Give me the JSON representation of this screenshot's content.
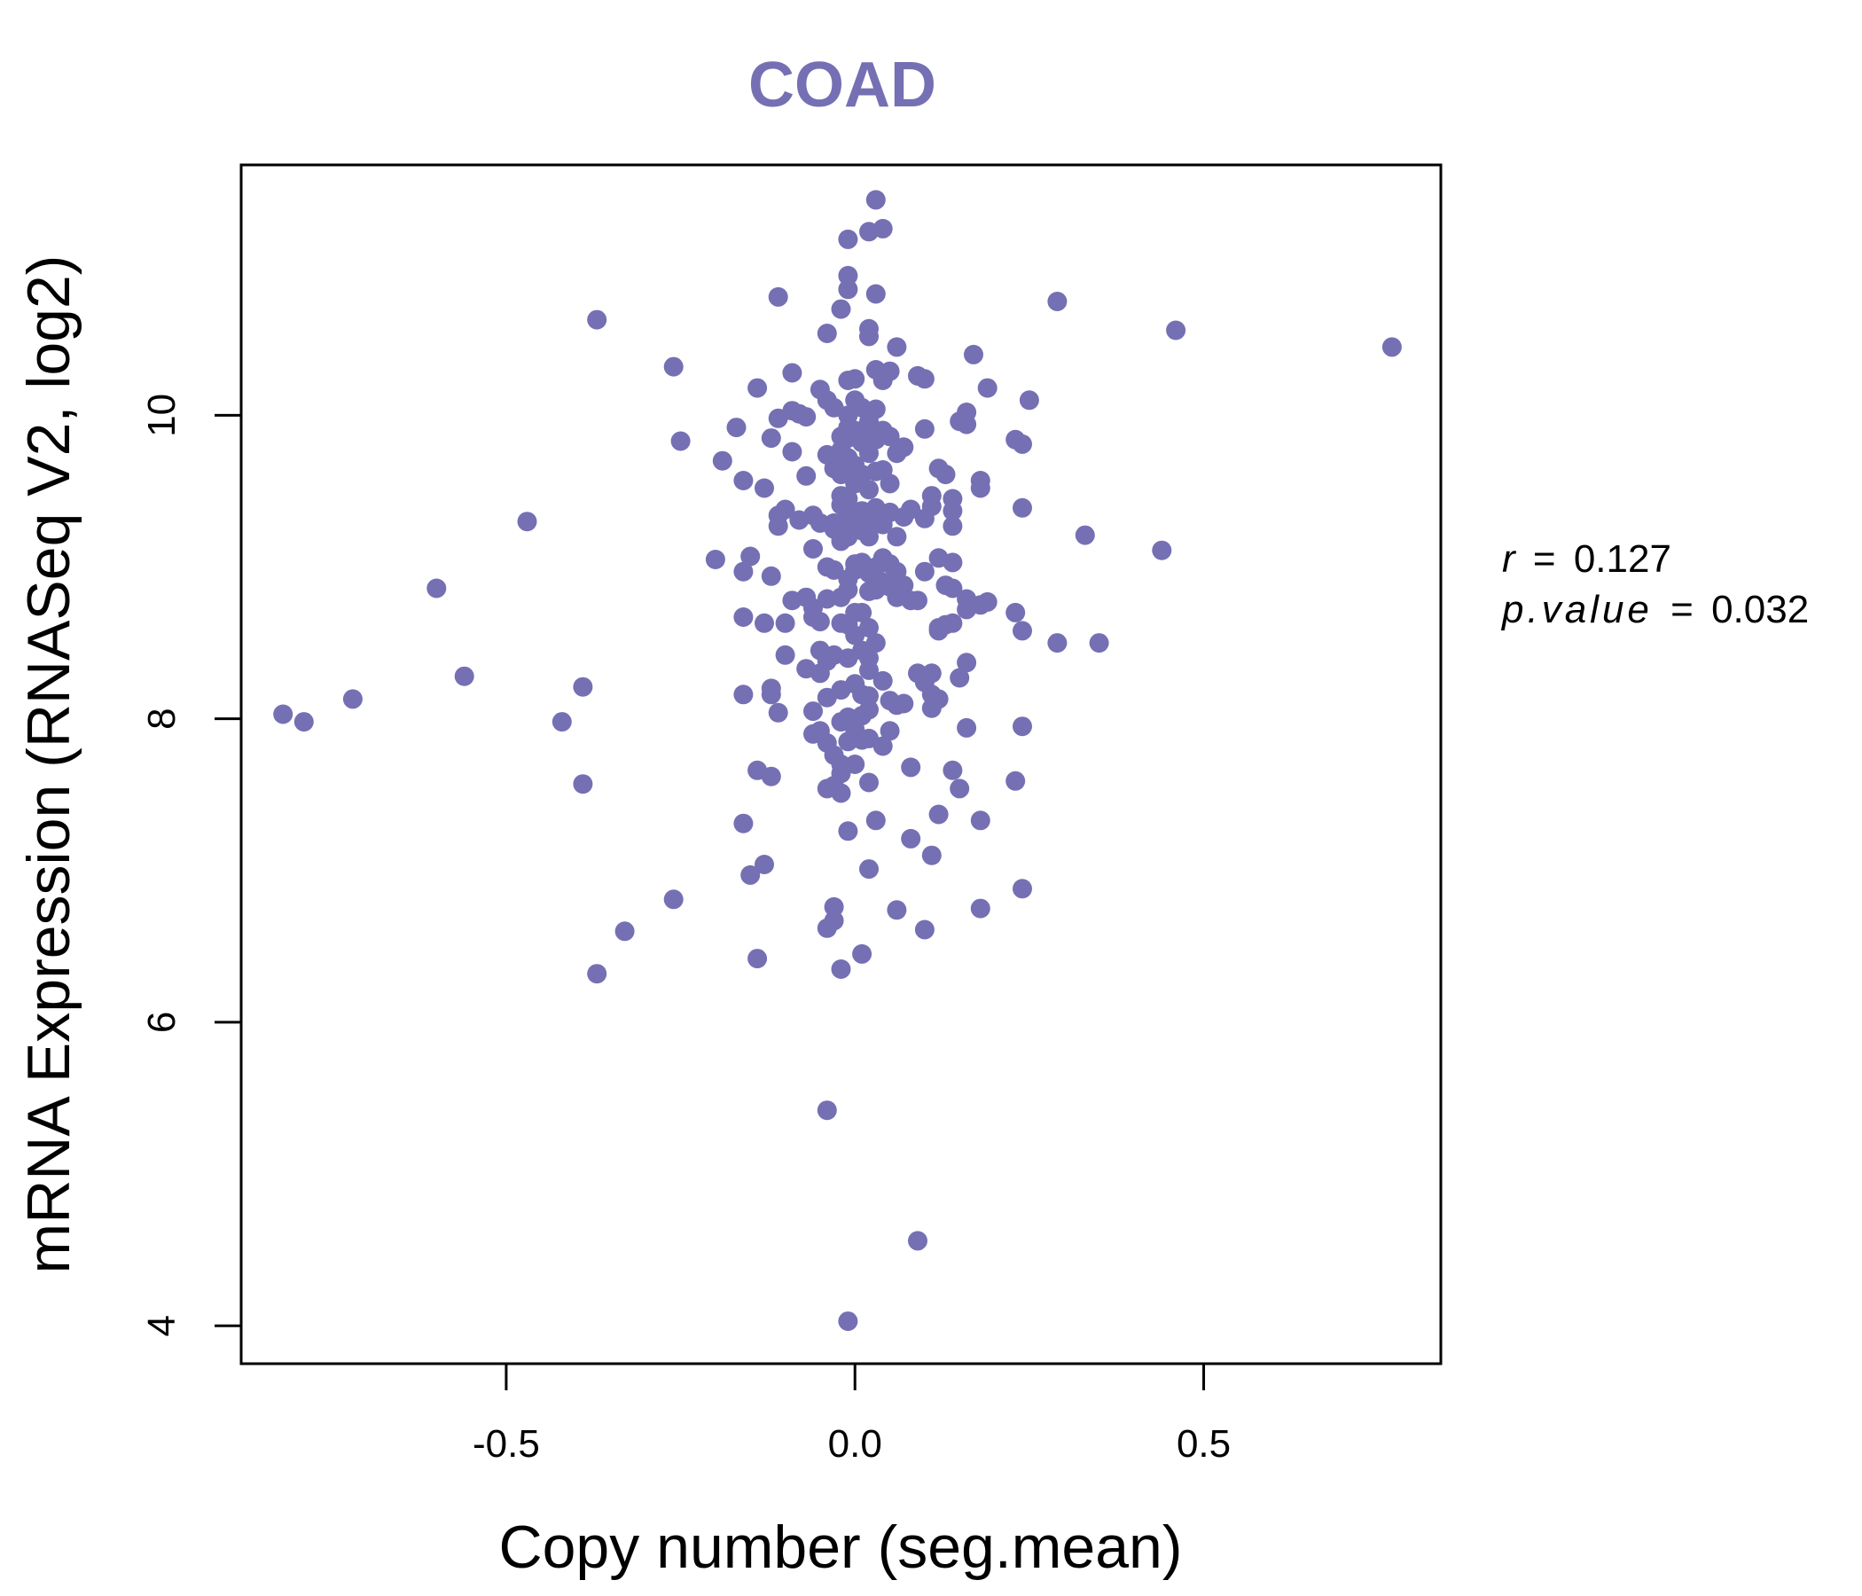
{
  "chart_data": {
    "type": "scatter",
    "title": "COAD",
    "xlabel": "Copy number (seg.mean)",
    "ylabel": "mRNA Expression (RNASeq V2, log2)",
    "xlim": [
      -0.88,
      0.84
    ],
    "ylim": [
      3.75,
      11.65
    ],
    "x_ticks": [
      -0.5,
      0.0,
      0.5
    ],
    "x_tick_labels": [
      "-0.5",
      "0.0",
      "0.5"
    ],
    "y_ticks": [
      4,
      6,
      8,
      10
    ],
    "y_tick_labels": [
      "4",
      "6",
      "8",
      "10"
    ],
    "grid": false,
    "legend": "none",
    "point_color": "#7570b3",
    "stats": {
      "r_label": "r",
      "r_value": "0.127",
      "p_label": "p.value",
      "p_value": "0.032",
      "equals": "="
    },
    "series": [
      {
        "points": [
          [
            -0.82,
            8.03
          ],
          [
            -0.79,
            7.98
          ],
          [
            -0.72,
            8.13
          ],
          [
            -0.6,
            8.86
          ],
          [
            -0.56,
            8.28
          ],
          [
            -0.47,
            9.3
          ],
          [
            -0.42,
            7.98
          ],
          [
            -0.39,
            8.21
          ],
          [
            -0.39,
            7.57
          ],
          [
            -0.37,
            10.63
          ],
          [
            -0.37,
            6.32
          ],
          [
            -0.33,
            6.6
          ],
          [
            -0.26,
            10.32
          ],
          [
            -0.26,
            6.81
          ],
          [
            -0.25,
            9.83
          ],
          [
            -0.2,
            9.05
          ],
          [
            -0.19,
            9.7
          ],
          [
            -0.17,
            9.92
          ],
          [
            -0.16,
            8.67
          ],
          [
            -0.16,
            8.16
          ],
          [
            -0.16,
            7.31
          ],
          [
            -0.16,
            9.57
          ],
          [
            -0.15,
            9.07
          ],
          [
            -0.16,
            8.97
          ],
          [
            -0.15,
            6.97
          ],
          [
            -0.14,
            10.18
          ],
          [
            -0.14,
            7.66
          ],
          [
            -0.14,
            6.42
          ],
          [
            -0.13,
            7.04
          ],
          [
            -0.13,
            8.63
          ],
          [
            -0.13,
            9.52
          ],
          [
            -0.12,
            8.2
          ],
          [
            -0.12,
            9.85
          ],
          [
            -0.12,
            8.16
          ],
          [
            -0.12,
            7.62
          ],
          [
            -0.12,
            8.94
          ],
          [
            -0.11,
            10.78
          ],
          [
            -0.11,
            9.34
          ],
          [
            -0.11,
            9.27
          ],
          [
            -0.11,
            8.04
          ],
          [
            -0.11,
            9.98
          ],
          [
            -0.1,
            8.63
          ],
          [
            -0.1,
            8.42
          ],
          [
            -0.1,
            9.38
          ],
          [
            -0.09,
            10.28
          ],
          [
            -0.09,
            8.78
          ],
          [
            -0.09,
            9.76
          ],
          [
            -0.09,
            10.03
          ],
          [
            -0.08,
            9.31
          ],
          [
            -0.08,
            10.01
          ],
          [
            -0.07,
            8.8
          ],
          [
            -0.07,
            9.6
          ],
          [
            -0.07,
            8.33
          ],
          [
            -0.07,
            9.99
          ],
          [
            -0.06,
            9.34
          ],
          [
            -0.06,
            9.12
          ],
          [
            -0.06,
            8.73
          ],
          [
            -0.06,
            8.67
          ],
          [
            -0.06,
            7.9
          ],
          [
            -0.06,
            8.05
          ],
          [
            -0.05,
            8.45
          ],
          [
            -0.05,
            7.92
          ],
          [
            -0.05,
            9.29
          ],
          [
            -0.05,
            8.64
          ],
          [
            -0.05,
            10.17
          ],
          [
            -0.05,
            8.3
          ],
          [
            -0.04,
            8.38
          ],
          [
            -0.04,
            8.14
          ],
          [
            -0.04,
            9.0
          ],
          [
            -0.04,
            10.1
          ],
          [
            -0.04,
            5.42
          ],
          [
            -0.04,
            10.54
          ],
          [
            -0.04,
            6.62
          ],
          [
            -0.04,
            7.54
          ],
          [
            -0.04,
            7.84
          ],
          [
            -0.04,
            8.79
          ],
          [
            -0.04,
            9.74
          ],
          [
            -0.03,
            10.05
          ],
          [
            -0.03,
            9.29
          ],
          [
            -0.03,
            8.42
          ],
          [
            -0.03,
            6.67
          ],
          [
            -0.03,
            6.76
          ],
          [
            -0.03,
            8.98
          ],
          [
            -0.03,
            9.65
          ],
          [
            -0.03,
            7.56
          ],
          [
            -0.03,
            9.25
          ],
          [
            -0.03,
            7.76
          ],
          [
            -0.02,
            10.7
          ],
          [
            -0.02,
            9.86
          ],
          [
            -0.02,
            9.76
          ],
          [
            -0.02,
            9.2
          ],
          [
            -0.02,
            8.19
          ],
          [
            -0.02,
            7.64
          ],
          [
            -0.02,
            7.7
          ],
          [
            -0.02,
            8.63
          ],
          [
            -0.02,
            6.35
          ],
          [
            -0.02,
            9.47
          ],
          [
            -0.02,
            9.41
          ],
          [
            -0.02,
            9.77
          ],
          [
            -0.02,
            9.61
          ],
          [
            -0.02,
            8.8
          ],
          [
            -0.02,
            7.98
          ],
          [
            -0.02,
            9.17
          ],
          [
            -0.02,
            9.25
          ],
          [
            -0.02,
            7.51
          ],
          [
            -0.01,
            11.16
          ],
          [
            -0.01,
            10.83
          ],
          [
            -0.01,
            10.23
          ],
          [
            -0.01,
            10.0
          ],
          [
            -0.01,
            9.92
          ],
          [
            -0.01,
            9.85
          ],
          [
            -0.01,
            9.72
          ],
          [
            -0.01,
            9.64
          ],
          [
            -0.01,
            9.45
          ],
          [
            -0.01,
            9.2
          ],
          [
            -0.01,
            8.92
          ],
          [
            -0.01,
            8.85
          ],
          [
            -0.01,
            8.62
          ],
          [
            -0.01,
            8.4
          ],
          [
            -0.01,
            8.01
          ],
          [
            -0.01,
            7.85
          ],
          [
            -0.01,
            7.26
          ],
          [
            -0.01,
            4.03
          ],
          [
            -0.01,
            10.92
          ],
          [
            -0.01,
            9.35
          ],
          [
            0.0,
            10.1
          ],
          [
            0.0,
            9.9
          ],
          [
            0.0,
            9.55
          ],
          [
            0.0,
            9.3
          ],
          [
            0.0,
            9.02
          ],
          [
            0.0,
            8.7
          ],
          [
            0.0,
            8.55
          ],
          [
            0.0,
            8.23
          ],
          [
            0.0,
            7.93
          ],
          [
            0.0,
            7.7
          ],
          [
            0.0,
            10.24
          ],
          [
            0.0,
            9.67
          ],
          [
            0.0,
            8.98
          ],
          [
            0.01,
            10.05
          ],
          [
            0.01,
            9.82
          ],
          [
            0.01,
            9.61
          ],
          [
            0.01,
            9.37
          ],
          [
            0.01,
            9.03
          ],
          [
            0.01,
            8.7
          ],
          [
            0.01,
            8.45
          ],
          [
            0.01,
            8.02
          ],
          [
            0.01,
            7.86
          ],
          [
            0.01,
            6.45
          ],
          [
            0.01,
            9.24
          ],
          [
            0.01,
            8.16
          ],
          [
            0.02,
            11.21
          ],
          [
            0.02,
            10.57
          ],
          [
            0.02,
            10.52
          ],
          [
            0.02,
            9.96
          ],
          [
            0.02,
            9.86
          ],
          [
            0.02,
            9.75
          ],
          [
            0.02,
            9.51
          ],
          [
            0.02,
            9.31
          ],
          [
            0.02,
            8.84
          ],
          [
            0.02,
            8.6
          ],
          [
            0.02,
            8.4
          ],
          [
            0.02,
            8.32
          ],
          [
            0.02,
            8.15
          ],
          [
            0.02,
            8.06
          ],
          [
            0.02,
            7.87
          ],
          [
            0.02,
            7.58
          ],
          [
            0.02,
            7.01
          ],
          [
            0.02,
            8.96
          ],
          [
            0.02,
            9.2
          ],
          [
            0.03,
            11.42
          ],
          [
            0.03,
            10.8
          ],
          [
            0.03,
            10.3
          ],
          [
            0.03,
            10.04
          ],
          [
            0.03,
            9.84
          ],
          [
            0.03,
            9.63
          ],
          [
            0.03,
            9.39
          ],
          [
            0.03,
            9.0
          ],
          [
            0.03,
            8.5
          ],
          [
            0.03,
            8.85
          ],
          [
            0.03,
            7.33
          ],
          [
            0.04,
            11.23
          ],
          [
            0.04,
            10.23
          ],
          [
            0.04,
            9.9
          ],
          [
            0.04,
            9.64
          ],
          [
            0.04,
            9.28
          ],
          [
            0.04,
            9.06
          ],
          [
            0.04,
            8.9
          ],
          [
            0.04,
            8.25
          ],
          [
            0.04,
            7.82
          ],
          [
            0.05,
            10.29
          ],
          [
            0.05,
            9.86
          ],
          [
            0.05,
            9.55
          ],
          [
            0.05,
            9.36
          ],
          [
            0.05,
            9.02
          ],
          [
            0.05,
            8.87
          ],
          [
            0.05,
            8.12
          ],
          [
            0.05,
            7.92
          ],
          [
            0.06,
            10.45
          ],
          [
            0.06,
            9.75
          ],
          [
            0.06,
            9.2
          ],
          [
            0.06,
            8.97
          ],
          [
            0.06,
            8.8
          ],
          [
            0.06,
            8.09
          ],
          [
            0.06,
            6.74
          ],
          [
            0.07,
            9.79
          ],
          [
            0.07,
            9.33
          ],
          [
            0.07,
            8.88
          ],
          [
            0.07,
            8.1
          ],
          [
            0.08,
            9.38
          ],
          [
            0.08,
            8.78
          ],
          [
            0.08,
            7.21
          ],
          [
            0.08,
            7.68
          ],
          [
            0.09,
            10.26
          ],
          [
            0.09,
            8.78
          ],
          [
            0.09,
            8.3
          ],
          [
            0.09,
            4.56
          ],
          [
            0.1,
            10.24
          ],
          [
            0.1,
            9.32
          ],
          [
            0.1,
            9.91
          ],
          [
            0.1,
            8.24
          ],
          [
            0.1,
            6.61
          ],
          [
            0.1,
            8.97
          ],
          [
            0.11,
            9.47
          ],
          [
            0.11,
            9.4
          ],
          [
            0.11,
            8.16
          ],
          [
            0.11,
            8.3
          ],
          [
            0.11,
            8.07
          ],
          [
            0.11,
            7.1
          ],
          [
            0.12,
            9.65
          ],
          [
            0.12,
            9.06
          ],
          [
            0.12,
            8.6
          ],
          [
            0.12,
            8.58
          ],
          [
            0.12,
            8.13
          ],
          [
            0.12,
            7.37
          ],
          [
            0.13,
            9.61
          ],
          [
            0.13,
            8.88
          ],
          [
            0.13,
            8.62
          ],
          [
            0.14,
            9.45
          ],
          [
            0.14,
            9.37
          ],
          [
            0.14,
            9.27
          ],
          [
            0.14,
            9.03
          ],
          [
            0.14,
            8.86
          ],
          [
            0.14,
            8.63
          ],
          [
            0.14,
            7.66
          ],
          [
            0.15,
            9.96
          ],
          [
            0.15,
            8.27
          ],
          [
            0.15,
            7.54
          ],
          [
            0.16,
            10.02
          ],
          [
            0.16,
            9.94
          ],
          [
            0.16,
            8.79
          ],
          [
            0.16,
            8.72
          ],
          [
            0.16,
            8.37
          ],
          [
            0.16,
            7.94
          ],
          [
            0.17,
            10.4
          ],
          [
            0.18,
            9.57
          ],
          [
            0.18,
            9.52
          ],
          [
            0.18,
            8.75
          ],
          [
            0.18,
            7.33
          ],
          [
            0.18,
            6.75
          ],
          [
            0.19,
            10.18
          ],
          [
            0.19,
            8.77
          ],
          [
            0.23,
            9.84
          ],
          [
            0.23,
            8.7
          ],
          [
            0.23,
            7.59
          ],
          [
            0.24,
            9.81
          ],
          [
            0.24,
            9.39
          ],
          [
            0.24,
            8.58
          ],
          [
            0.24,
            7.95
          ],
          [
            0.24,
            6.88
          ],
          [
            0.25,
            10.1
          ],
          [
            0.29,
            10.75
          ],
          [
            0.29,
            8.5
          ],
          [
            0.33,
            9.21
          ],
          [
            0.35,
            8.5
          ],
          [
            0.44,
            9.11
          ],
          [
            0.46,
            10.56
          ],
          [
            0.77,
            10.45
          ]
        ]
      }
    ]
  }
}
